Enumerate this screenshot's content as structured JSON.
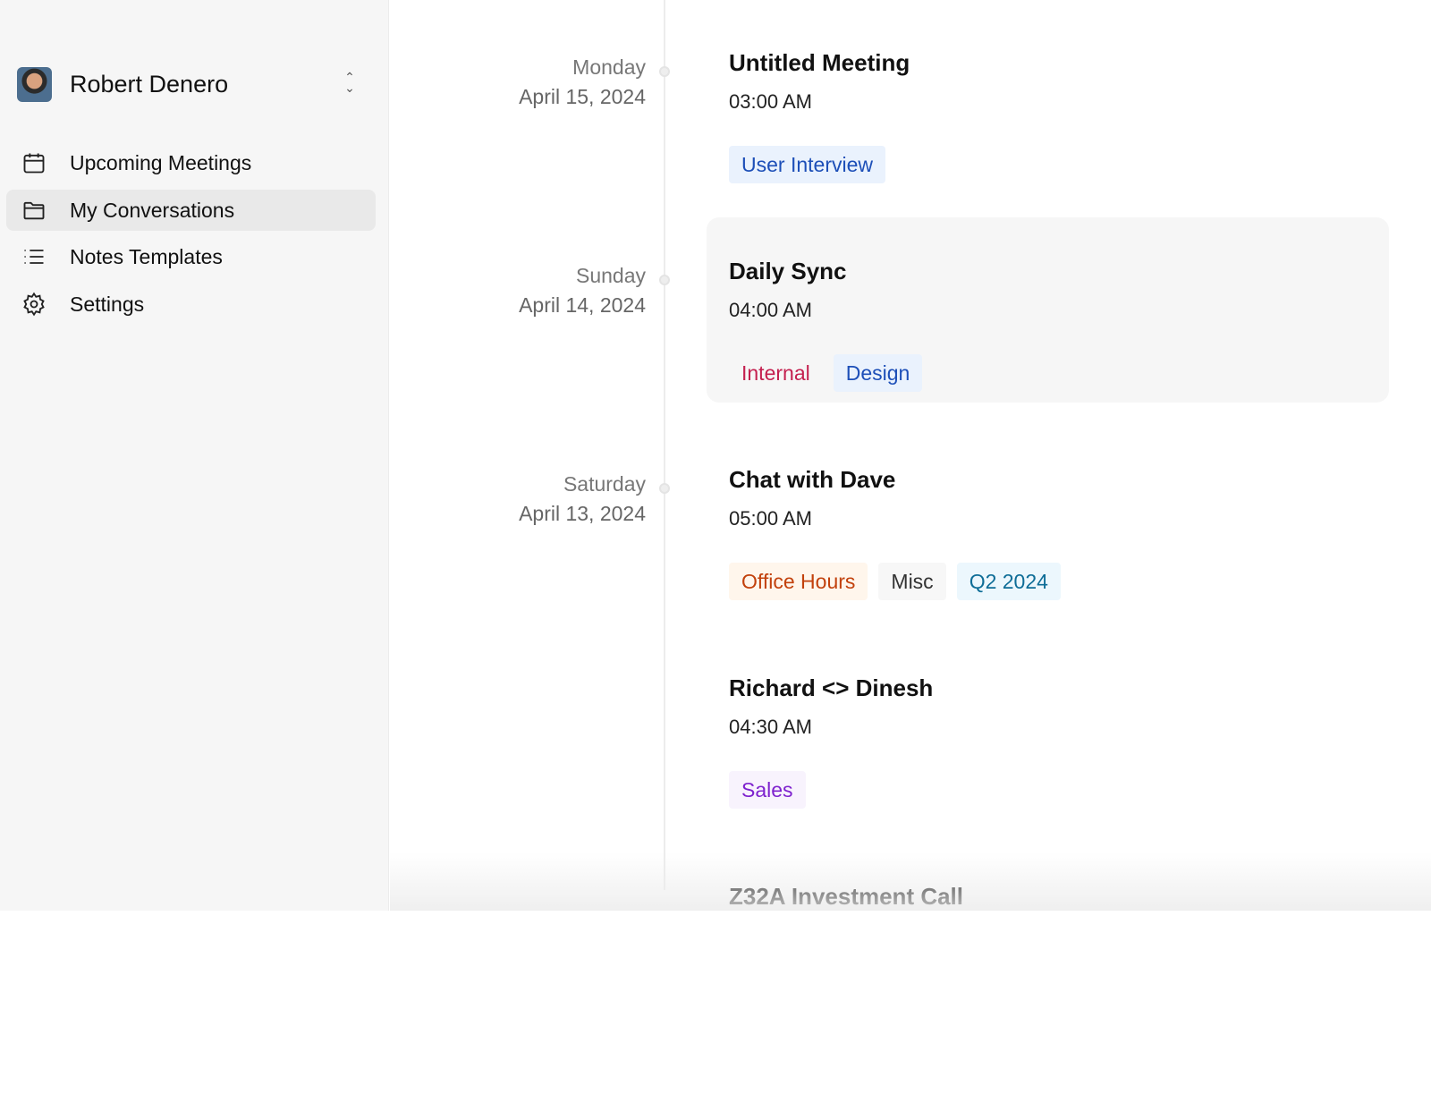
{
  "user": {
    "name": "Robert Denero"
  },
  "nav": [
    {
      "label": "Upcoming Meetings",
      "icon": "calendar-icon",
      "active": false
    },
    {
      "label": "My Conversations",
      "icon": "folder-icon",
      "active": true
    },
    {
      "label": "Notes Templates",
      "icon": "list-icon",
      "active": false
    },
    {
      "label": "Settings",
      "icon": "gear-icon",
      "active": false
    }
  ],
  "meetings": [
    {
      "day": "Monday",
      "date": "April 15, 2024",
      "title": "Untitled Meeting",
      "time": "03:00 AM",
      "tags": [
        {
          "label": "User Interview",
          "color": "#1d4fb8",
          "bg": "#eaf2fd"
        }
      ]
    },
    {
      "day": "Sunday",
      "date": "April 14, 2024",
      "title": "Daily Sync",
      "time": "04:00 AM",
      "highlighted": true,
      "tags": [
        {
          "label": "Internal",
          "color": "#c4204f",
          "bg": "#f6f6f6"
        },
        {
          "label": "Design",
          "color": "#1d4fb8",
          "bg": "#eaf2fd"
        }
      ]
    },
    {
      "day": "Saturday",
      "date": "April 13, 2024",
      "title": "Chat with Dave",
      "time": "05:00 AM",
      "tags": [
        {
          "label": "Office Hours",
          "color": "#c2410c",
          "bg": "#fff6ec"
        },
        {
          "label": "Misc",
          "color": "#333",
          "bg": "#f7f7f7"
        },
        {
          "label": "Q2 2024",
          "color": "#0e6d97",
          "bg": "#ecf7fd"
        }
      ]
    },
    {
      "day": "",
      "date": "",
      "title": "Richard <> Dinesh",
      "time": "04:30 AM",
      "tags": [
        {
          "label": "Sales",
          "color": "#7e22ce",
          "bg": "#f8f3fd"
        }
      ]
    },
    {
      "day": "",
      "date": "",
      "title": "Z32A Investment Call",
      "time": "",
      "tags": []
    }
  ]
}
